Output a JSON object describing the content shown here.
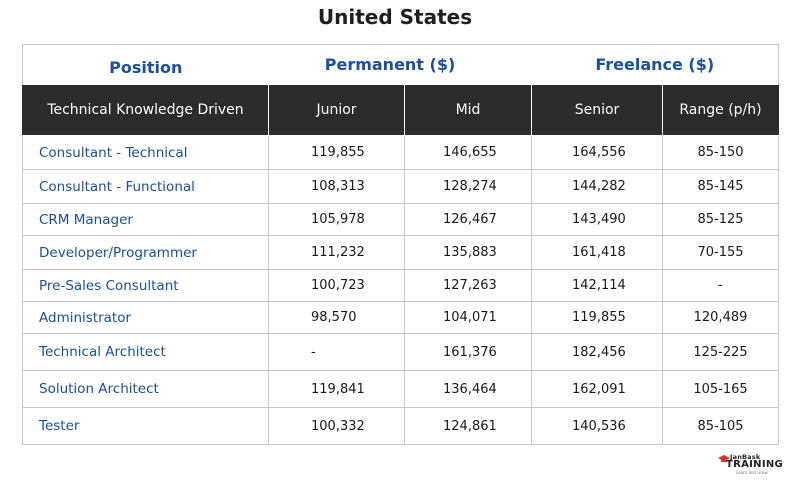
{
  "title": "United States",
  "groups": {
    "position": "Position",
    "permanent": "Permanent ($)",
    "freelance": "Freelance ($)"
  },
  "columns": [
    "Technical Knowledge Driven",
    "Junior",
    "Mid",
    "Senior",
    "Range (p/h)"
  ],
  "rows": [
    {
      "position": "Consultant - Technical",
      "junior": "119,855",
      "mid": "146,655",
      "senior": "164,556",
      "range": "85-150"
    },
    {
      "position": "Consultant - Functional",
      "junior": "108,313",
      "mid": "128,274",
      "senior": "144,282",
      "range": "85-145"
    },
    {
      "position": "CRM Manager",
      "junior": "105,978",
      "mid": "126,467",
      "senior": "143,490",
      "range": "85-125"
    },
    {
      "position": "Developer/Programmer",
      "junior": "111,232",
      "mid": "135,883",
      "senior": "161,418",
      "range": "70-155"
    },
    {
      "position": "Pre-Sales Consultant",
      "junior": "100,723",
      "mid": "127,263",
      "senior": "142,114",
      "range": "-"
    },
    {
      "position": "Administrator",
      "junior": "98,570",
      "mid": "104,071",
      "senior": "119,855",
      "range": "120,489"
    },
    {
      "position": "Technical Architect",
      "junior": "-",
      "mid": "161,376",
      "senior": "182,456",
      "range": "125-225"
    },
    {
      "position": "Solution Architect",
      "junior": "119,841",
      "mid": "136,464",
      "senior": "162,091",
      "range": "105-165"
    },
    {
      "position": "Tester",
      "junior": "100,332",
      "mid": "124,861",
      "senior": "140,536",
      "range": "85-105"
    }
  ],
  "logo": {
    "top": "JanBask",
    "main": "TRAINING",
    "tagline": "Learn and Grow"
  },
  "colors": {
    "accent": "#1b4fa0",
    "header_bg": "#2b2b2b"
  }
}
